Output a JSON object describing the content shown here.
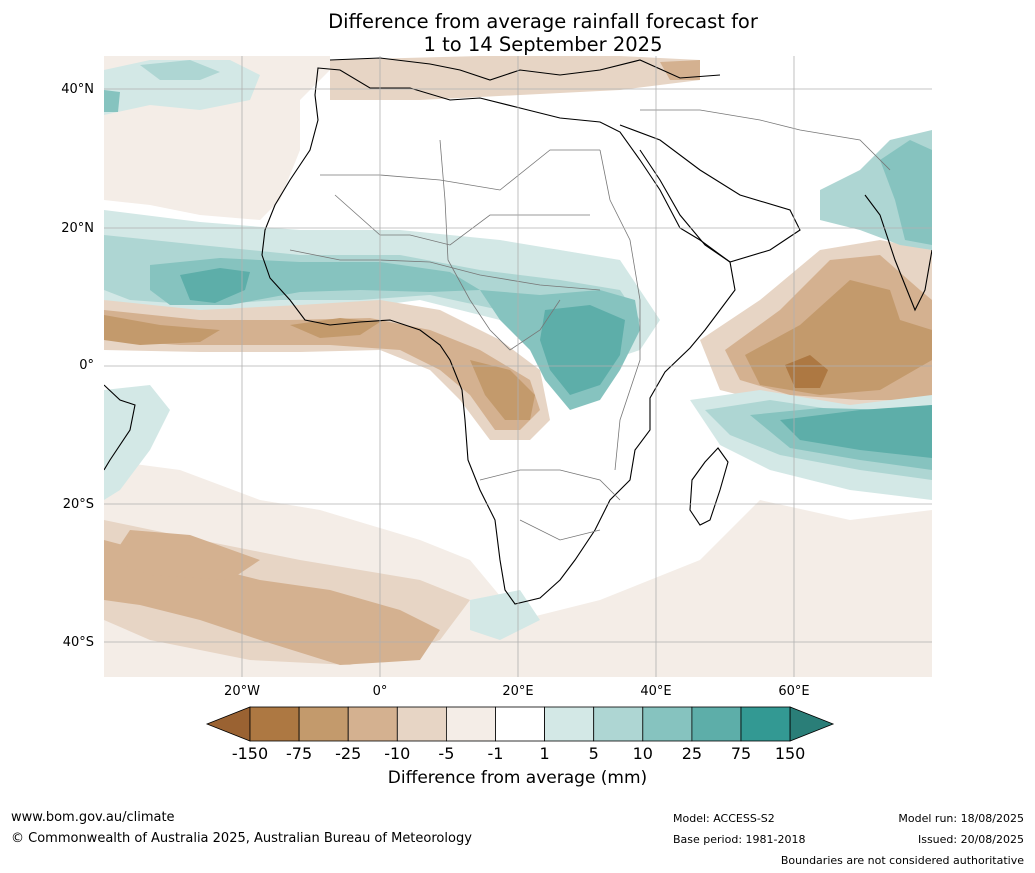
{
  "title_line1": "Difference from average rainfall forecast for",
  "title_line2": "1 to 14 September 2025",
  "lat_labels": [
    "40°N",
    "20°N",
    "0°",
    "20°S",
    "40°S"
  ],
  "lon_labels": [
    "20°W",
    "0°",
    "20°E",
    "40°E",
    "60°E"
  ],
  "legend": {
    "title": "Difference from average (mm)",
    "ticks": [
      "-150",
      "-75",
      "-25",
      "-10",
      "-5",
      "-1",
      "1",
      "5",
      "10",
      "25",
      "75",
      "150"
    ],
    "colors": [
      "#9a6232",
      "#ad7842",
      "#c39a6c",
      "#d4b190",
      "#e7d5c5",
      "#f4ede7",
      "#ffffff",
      "#d3e8e6",
      "#aed6d3",
      "#86c3bf",
      "#5daea9",
      "#339993",
      "#2a7e78"
    ]
  },
  "footer": {
    "website": "www.bom.gov.au/climate",
    "copyright": "© Commonwealth of Australia 2025, Australian Bureau of Meteorology",
    "model": "Model: ACCESS-S2",
    "base_period": "Base period: 1981-2018",
    "model_run": "Model run: 18/08/2025",
    "issued": "Issued: 20/08/2025",
    "disclaimer": "Boundaries are not considered authoritative"
  }
}
